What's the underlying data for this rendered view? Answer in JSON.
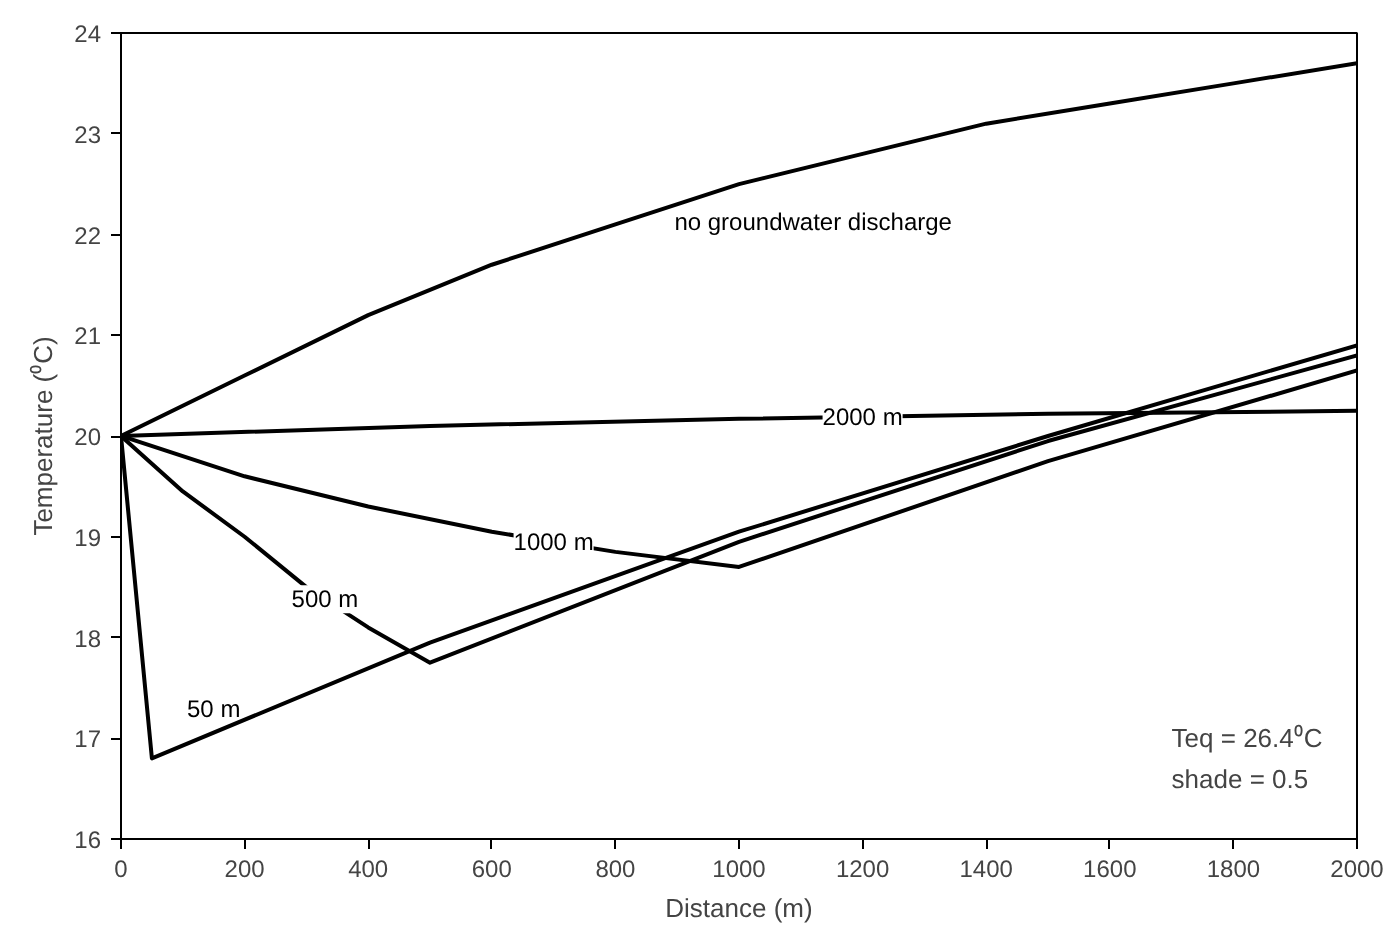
{
  "chart_data": {
    "type": "line",
    "xlabel": "Distance (m)",
    "ylabel": "Temperature (⁰C)",
    "xlim": [
      0,
      2000
    ],
    "ylim": [
      16,
      24
    ],
    "xticks": [
      0,
      200,
      400,
      600,
      800,
      1000,
      1200,
      1400,
      1600,
      1800,
      2000
    ],
    "yticks": [
      16,
      17,
      18,
      19,
      20,
      21,
      22,
      23,
      24
    ],
    "grid": false,
    "marker": "none",
    "line_style": "solid",
    "series": [
      {
        "name": "no groundwater discharge",
        "color": "#000000",
        "x": [
          0,
          200,
          400,
          600,
          800,
          1000,
          1200,
          1400,
          1600,
          1800,
          2000
        ],
        "values": [
          20,
          20.6,
          21.2,
          21.7,
          22.1,
          22.5,
          22.8,
          23.1,
          23.3,
          23.5,
          23.7
        ]
      },
      {
        "name": "2000 m",
        "color": "#000000",
        "x": [
          0,
          500,
          1000,
          1500,
          2000
        ],
        "values": [
          20,
          20.1,
          20.17,
          20.22,
          20.25
        ]
      },
      {
        "name": "1000 m",
        "color": "#000000",
        "x": [
          0,
          200,
          400,
          600,
          800,
          1000,
          1500,
          2000
        ],
        "values": [
          20,
          19.6,
          19.3,
          19.05,
          18.85,
          18.7,
          19.75,
          20.65
        ]
      },
      {
        "name": "500 m",
        "color": "#000000",
        "x": [
          0,
          100,
          200,
          300,
          400,
          500,
          1000,
          1500,
          2000
        ],
        "values": [
          20,
          19.45,
          19.0,
          18.5,
          18.1,
          17.75,
          18.95,
          19.95,
          20.8
        ]
      },
      {
        "name": "50 m",
        "color": "#000000",
        "x": [
          0,
          50,
          500,
          1000,
          1500,
          2000
        ],
        "values": [
          20,
          16.8,
          17.95,
          19.05,
          20.0,
          20.9
        ]
      }
    ],
    "annotations": [
      "Teq = 26.4⁰C",
      "shade = 0.5"
    ]
  }
}
